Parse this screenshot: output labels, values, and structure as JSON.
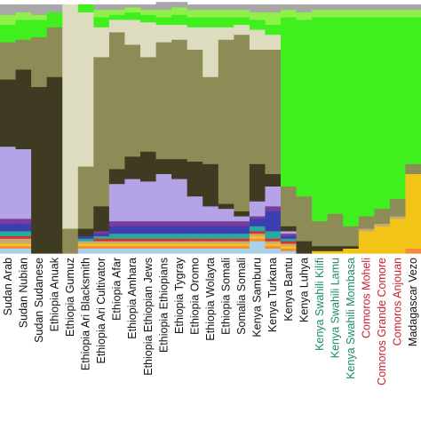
{
  "chart_data": {
    "type": "bar",
    "stacked": true,
    "normalized": true,
    "ylim": [
      0,
      1
    ],
    "grid": false,
    "legend": "none",
    "components": [
      {
        "key": "lightblue",
        "color": "#a9d2e8"
      },
      {
        "key": "orange",
        "color": "#f58a3b"
      },
      {
        "key": "yellow",
        "color": "#f2c418"
      },
      {
        "key": "tan",
        "color": "#c8a876"
      },
      {
        "key": "red",
        "color": "#d9312b"
      },
      {
        "key": "teal",
        "color": "#27a9a0"
      },
      {
        "key": "blue",
        "color": "#3d3fb0"
      },
      {
        "key": "purple",
        "color": "#7b3b99"
      },
      {
        "key": "lavender",
        "color": "#b4a3e6"
      },
      {
        "key": "darkbrown",
        "color": "#3f3a22"
      },
      {
        "key": "olive",
        "color": "#8d8c56"
      },
      {
        "key": "cream",
        "color": "#dedcbf"
      },
      {
        "key": "brightgreen",
        "color": "#3ff01e"
      },
      {
        "key": "lightgreen",
        "color": "#8ef048"
      },
      {
        "key": "gray",
        "color": "#a8a8a8"
      }
    ],
    "groups": [
      {
        "label": "Sudan Arab",
        "color": "#111111",
        "values": [
          0.02,
          0.01,
          0.01,
          0.02,
          0.01,
          0.02,
          0.03,
          0.02,
          0.29,
          0.27,
          0.15,
          0.0,
          0.07,
          0.04,
          0.04
        ]
      },
      {
        "label": "Sudan Nubian",
        "color": "#111111",
        "values": [
          0.02,
          0.01,
          0.01,
          0.02,
          0.01,
          0.02,
          0.03,
          0.02,
          0.28,
          0.32,
          0.12,
          0.0,
          0.08,
          0.03,
          0.03
        ]
      },
      {
        "label": "Sudan Sudanese",
        "color": "#111111",
        "values": [
          0.0,
          0.0,
          0.0,
          0.0,
          0.0,
          0.0,
          0.0,
          0.0,
          0.0,
          0.67,
          0.2,
          0.0,
          0.07,
          0.02,
          0.04
        ]
      },
      {
        "label": "Ethiopia Anuak",
        "color": "#111111",
        "values": [
          0.0,
          0.0,
          0.0,
          0.0,
          0.0,
          0.0,
          0.0,
          0.0,
          0.0,
          0.71,
          0.2,
          0.0,
          0.06,
          0.0,
          0.03
        ]
      },
      {
        "label": "Ethiopia Gumuz",
        "color": "#111111",
        "values": [
          0.0,
          0.0,
          0.0,
          0.0,
          0.0,
          0.0,
          0.0,
          0.0,
          0.0,
          0.0,
          0.1,
          0.9,
          0.0,
          0.0,
          0.0
        ]
      },
      {
        "label": "Ethiopia Ari Blacksmith",
        "color": "#111111",
        "values": [
          0.02,
          0.01,
          0.01,
          0.01,
          0.0,
          0.01,
          0.01,
          0.0,
          0.0,
          0.03,
          0.25,
          0.62,
          0.03,
          0.0,
          0.0
        ]
      },
      {
        "label": "Ethiopia Ari Cultivator",
        "color": "#111111",
        "values": [
          0.02,
          0.01,
          0.01,
          0.01,
          0.01,
          0.01,
          0.01,
          0.01,
          0.0,
          0.1,
          0.6,
          0.12,
          0.04,
          0.03,
          0.02
        ]
      },
      {
        "label": "Ethiopia Afar",
        "color": "#111111",
        "values": [
          0.02,
          0.01,
          0.01,
          0.01,
          0.01,
          0.02,
          0.03,
          0.02,
          0.15,
          0.06,
          0.55,
          0.05,
          0.02,
          0.02,
          0.02
        ]
      },
      {
        "label": "Ethiopia Amhara",
        "color": "#111111",
        "values": [
          0.02,
          0.01,
          0.01,
          0.01,
          0.01,
          0.02,
          0.03,
          0.02,
          0.17,
          0.09,
          0.45,
          0.1,
          0.03,
          0.02,
          0.01
        ]
      },
      {
        "label": "Ethiopia Ethiopian Jews",
        "color": "#111111",
        "values": [
          0.02,
          0.01,
          0.01,
          0.01,
          0.01,
          0.02,
          0.03,
          0.02,
          0.16,
          0.12,
          0.38,
          0.14,
          0.03,
          0.02,
          0.02
        ]
      },
      {
        "label": "Ethiopia Ethiopians",
        "color": "#111111",
        "values": [
          0.02,
          0.01,
          0.01,
          0.01,
          0.01,
          0.02,
          0.03,
          0.02,
          0.19,
          0.06,
          0.47,
          0.07,
          0.03,
          0.03,
          0.03
        ]
      },
      {
        "label": "Ethiopia Tygray",
        "color": "#111111",
        "values": [
          0.02,
          0.01,
          0.01,
          0.01,
          0.01,
          0.02,
          0.03,
          0.02,
          0.17,
          0.08,
          0.48,
          0.06,
          0.04,
          0.03,
          0.02
        ]
      },
      {
        "label": "Ethiopia Oromo",
        "color": "#111111",
        "values": [
          0.02,
          0.01,
          0.01,
          0.01,
          0.01,
          0.02,
          0.03,
          0.02,
          0.1,
          0.14,
          0.45,
          0.09,
          0.04,
          0.03,
          0.02
        ]
      },
      {
        "label": "Ethiopia Wolayta",
        "color": "#111111",
        "values": [
          0.02,
          0.01,
          0.01,
          0.01,
          0.01,
          0.02,
          0.03,
          0.02,
          0.06,
          0.17,
          0.35,
          0.2,
          0.04,
          0.03,
          0.02
        ]
      },
      {
        "label": "Ethiopia Somali",
        "color": "#111111",
        "values": [
          0.02,
          0.01,
          0.01,
          0.01,
          0.01,
          0.02,
          0.03,
          0.02,
          0.05,
          0.02,
          0.66,
          0.05,
          0.04,
          0.03,
          0.02
        ]
      },
      {
        "label": "Somalia Somali",
        "color": "#111111",
        "values": [
          0.02,
          0.01,
          0.01,
          0.01,
          0.01,
          0.02,
          0.03,
          0.02,
          0.02,
          0.02,
          0.71,
          0.04,
          0.03,
          0.03,
          0.02
        ]
      },
      {
        "label": "Kenya Samburu",
        "color": "#111111",
        "values": [
          0.05,
          0.01,
          0.01,
          0.01,
          0.01,
          0.02,
          0.03,
          0.01,
          0.06,
          0.15,
          0.46,
          0.08,
          0.04,
          0.03,
          0.03
        ]
      },
      {
        "label": "Kenya Turkana",
        "color": "#111111",
        "values": [
          0.02,
          0.01,
          0.01,
          0.01,
          0.01,
          0.03,
          0.08,
          0.02,
          0.08,
          0.05,
          0.5,
          0.06,
          0.04,
          0.05,
          0.03
        ]
      },
      {
        "label": "Kenya Bantu",
        "color": "#111111",
        "values": [
          0.01,
          0.01,
          0.01,
          0.01,
          0.01,
          0.01,
          0.01,
          0.01,
          0.01,
          0.02,
          0.16,
          0.0,
          0.68,
          0.03,
          0.02
        ]
      },
      {
        "label": "Kenya Luhya",
        "color": "#111111",
        "values": [
          0.0,
          0.0,
          0.0,
          0.0,
          0.0,
          0.0,
          0.0,
          0.0,
          0.0,
          0.05,
          0.18,
          0.0,
          0.71,
          0.03,
          0.03
        ]
      },
      {
        "label": "Kenya Swahili Kilifi",
        "color": "#1d8a6e",
        "values": [
          0.0,
          0.0,
          0.01,
          0.0,
          0.0,
          0.0,
          0.0,
          0.0,
          0.0,
          0.02,
          0.1,
          0.0,
          0.82,
          0.03,
          0.02
        ]
      },
      {
        "label": "Kenya Swahili Lamu",
        "color": "#1d8a6e",
        "values": [
          0.0,
          0.0,
          0.01,
          0.0,
          0.0,
          0.0,
          0.0,
          0.0,
          0.0,
          0.02,
          0.13,
          0.0,
          0.79,
          0.03,
          0.02
        ]
      },
      {
        "label": "Kenya Swahili Mombasa",
        "color": "#1d8a6e",
        "values": [
          0.0,
          0.0,
          0.02,
          0.0,
          0.0,
          0.0,
          0.0,
          0.0,
          0.0,
          0.01,
          0.08,
          0.0,
          0.84,
          0.03,
          0.02
        ]
      },
      {
        "label": "Comoros Moheli",
        "color": "#c9202e",
        "values": [
          0.0,
          0.0,
          0.09,
          0.01,
          0.0,
          0.0,
          0.0,
          0.0,
          0.0,
          0.0,
          0.05,
          0.0,
          0.8,
          0.03,
          0.02
        ]
      },
      {
        "label": "Comoros Grande Comore",
        "color": "#c9202e",
        "values": [
          0.0,
          0.0,
          0.11,
          0.01,
          0.0,
          0.0,
          0.0,
          0.0,
          0.0,
          0.0,
          0.06,
          0.0,
          0.77,
          0.03,
          0.02
        ]
      },
      {
        "label": "Comoros Anjouan",
        "color": "#c9202e",
        "values": [
          0.0,
          0.0,
          0.14,
          0.01,
          0.0,
          0.0,
          0.0,
          0.0,
          0.0,
          0.0,
          0.07,
          0.0,
          0.73,
          0.03,
          0.02
        ]
      },
      {
        "label": "Madagascar Vezo",
        "color": "#111111",
        "values": [
          0.0,
          0.02,
          0.3,
          0.0,
          0.0,
          0.0,
          0.0,
          0.0,
          0.0,
          0.0,
          0.04,
          0.0,
          0.59,
          0.03,
          0.02
        ]
      }
    ]
  }
}
